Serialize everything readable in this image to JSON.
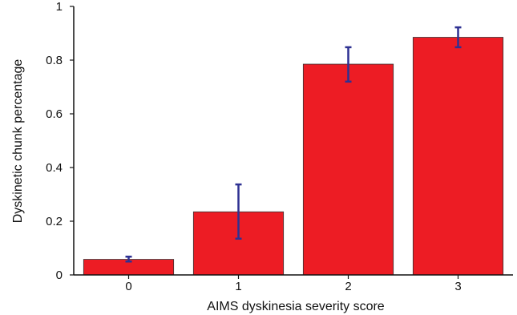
{
  "chart_data": {
    "type": "bar",
    "title": "",
    "xlabel": "AIMS dyskinesia severity score",
    "ylabel": "Dyskinetic chunk percentage",
    "categories": [
      "0",
      "1",
      "2",
      "3"
    ],
    "values": [
      0.058,
      0.235,
      0.785,
      0.885
    ],
    "error_low": [
      0.05,
      0.135,
      0.72,
      0.848
    ],
    "error_high": [
      0.068,
      0.337,
      0.848,
      0.922
    ],
    "ylim": [
      0,
      1
    ],
    "yticks": [
      0,
      0.2,
      0.4,
      0.6,
      0.8,
      1
    ],
    "ytick_labels": [
      "0",
      "0.2",
      "0.4",
      "0.6",
      "0.8",
      "1"
    ],
    "bar_color": "#ed1c24",
    "error_color": "#2e3192",
    "grid": false,
    "legend": "none"
  }
}
